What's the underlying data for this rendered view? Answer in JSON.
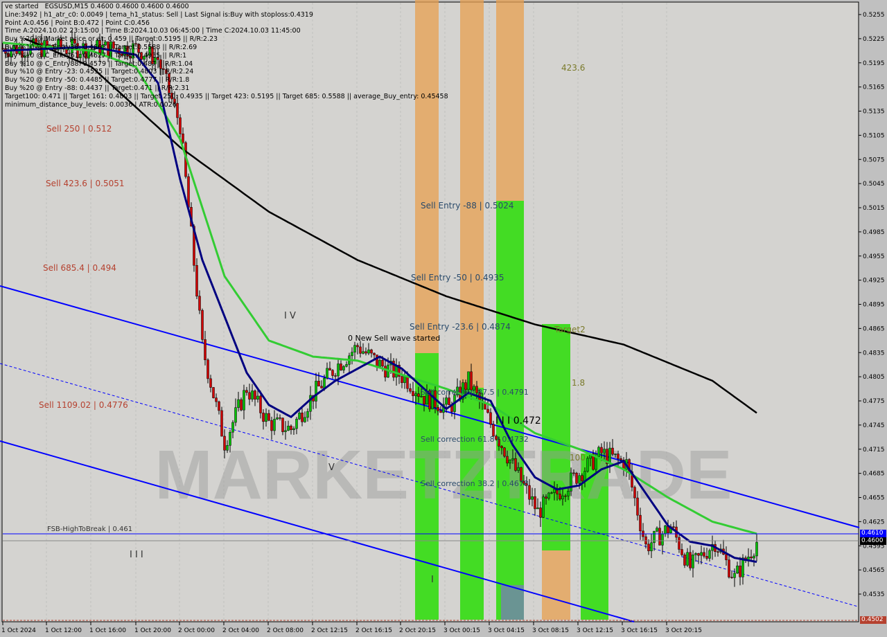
{
  "header": {
    "title_line": "EGSUSD,M15  0.4600 0.4600 0.4600 0.4600",
    "overlay_text": "ve started",
    "lines": [
      "Line:3492 | h1_atr_c0: 0.0049 | tema_h1_status: Sell | Last Signal is:Buy with stoploss:0.4319",
      "Point A:0.456 | Point B:0.472 | Point C:0.456",
      "Time A:2024.10.02 23:15:00 | Time B:2024.10.03 06:45:00 | Time C:2024.10.03 11:45:00",
      "Buy %20 @ Market price or at: 0.459 || Target:0.5195 || R/R:2.23",
      "Buy %10 @ C_Entry38: 0.4663 || Target:0.5588 || R/R:2.69",
      "Buy %10 @ C_Entry61: 0.4627 || Target:0.4935 || R/R:1",
      "Buy %10 @ C_Entry88: 0.4579 || Target:0.487 || R/R:1.04",
      "Buy %10 @ Entry -23: 0.4535 || Target:0.4803 || R/R:2.24",
      "Buy %20 @ Entry -50: 0.4485 || Target:0.4777 || R/R:1.8",
      "Buy %20 @ Entry -88: 0.4437 || Target:0.471 || R/R:2.31",
      "Target100: 0.471 || Target 161: 0.4803 || Target 250: 0.4935 || Target 423: 0.5195 || Target 685: 0.5588 || average_Buy_entry: 0.45458",
      "minimum_distance_buy_levels: 0.0036 | ATR:0.0026"
    ]
  },
  "labels": {
    "sell_250": "Sell 250 | 0.512",
    "sell_423": "Sell 423.6 | 0.5051",
    "sell_685": "Sell 685.4 | 0.494",
    "sell_1109": "Sell 1109.02 | 0.4776",
    "fsb": "FSB-HighToBreak | 0.461",
    "wave_iv": "I V",
    "wave_v": "V",
    "wave_iii": "I I I",
    "wave_i": "I",
    "new_wave": "0 New Sell wave started",
    "entry_88": "Sell Entry -88 | 0.5024",
    "entry_50": "Sell Entry -50 | 0.4935",
    "entry_23": "Sell Entry -23.6 | 0.4874",
    "corr_87": "Sell correction 87.5 | 0.4791",
    "corr_61": "Sell correction 61.8 | 0.4732",
    "corr_38": "Sell correction 38.2 | 0.4678",
    "point_b": "I I I 0.472",
    "t423": "423.6",
    "target2": "Target2",
    "t18": "1.8",
    "t100": "100",
    "watermark": "MARKETZTRADE"
  },
  "price_tags": {
    "blue": "0.4610",
    "black": "0.4600",
    "red": "0.4502"
  },
  "colors": {
    "background": "#d4d3d0",
    "bull": "#00c000",
    "bear": "#d00000",
    "channel": "#0000ff",
    "ma_slow": "#000000",
    "ma_mid": "#33cc33",
    "ma_fast": "#000080",
    "zone_green": "#33dd11",
    "zone_orange": "#e8a050",
    "label_brown": "#b5412f"
  },
  "chart_data": {
    "type": "line",
    "symbol": "EGSUSD",
    "timeframe": "M15",
    "y_ticks": [
      "0.5255",
      "0.5225",
      "0.5195",
      "0.5165",
      "0.5135",
      "0.5105",
      "0.5075",
      "0.5045",
      "0.5015",
      "0.4985",
      "0.4955",
      "0.4925",
      "0.4895",
      "0.4865",
      "0.4835",
      "0.4805",
      "0.4775",
      "0.4745",
      "0.4715",
      "0.4685",
      "0.4655",
      "0.4625",
      "0.4595",
      "0.4565",
      "0.4535"
    ],
    "ylim": [
      0.4502,
      0.5275
    ],
    "x_ticks": [
      "1 Oct 2024",
      "1 Oct 12:00",
      "1 Oct 16:00",
      "1 Oct 20:00",
      "2 Oct 00:00",
      "2 Oct 04:00",
      "2 Oct 08:00",
      "2 Oct 12:15",
      "2 Oct 16:15",
      "2 Oct 20:15",
      "3 Oct 00:15",
      "3 Oct 04:15",
      "3 Oct 08:15",
      "3 Oct 12:15",
      "3 Oct 16:15",
      "3 Oct 20:15"
    ],
    "price": [
      [
        0,
        0.5213
      ],
      [
        12,
        0.5213
      ],
      [
        14,
        0.52
      ],
      [
        16,
        0.5118
      ],
      [
        18,
        0.4843
      ],
      [
        20,
        0.4723
      ],
      [
        22,
        0.4791
      ],
      [
        24,
        0.4748
      ],
      [
        26,
        0.474
      ],
      [
        28,
        0.4783
      ],
      [
        30,
        0.4817
      ],
      [
        32,
        0.4843
      ],
      [
        34,
        0.482
      ],
      [
        36.25,
        0.4804
      ],
      [
        38,
        0.478
      ],
      [
        40.25,
        0.4766
      ],
      [
        42,
        0.48
      ],
      [
        44.25,
        0.474
      ],
      [
        48.25,
        0.4637
      ],
      [
        50,
        0.466
      ],
      [
        52.25,
        0.4688
      ],
      [
        54,
        0.471
      ],
      [
        56.25,
        0.4697
      ],
      [
        58,
        0.4594
      ],
      [
        60.25,
        0.4619
      ],
      [
        62,
        0.4568
      ],
      [
        64.25,
        0.46
      ],
      [
        66,
        0.4555
      ],
      [
        68,
        0.46
      ]
    ],
    "ma_slow": [
      [
        2,
        0.5225
      ],
      [
        8,
        0.519
      ],
      [
        16,
        0.509
      ],
      [
        24,
        0.501
      ],
      [
        32,
        0.495
      ],
      [
        40,
        0.4905
      ],
      [
        48,
        0.487
      ],
      [
        56,
        0.4845
      ],
      [
        64,
        0.48
      ],
      [
        68,
        0.476
      ]
    ],
    "ma_mid": [
      [
        0,
        0.522
      ],
      [
        8,
        0.521
      ],
      [
        12,
        0.519
      ],
      [
        16,
        0.51
      ],
      [
        20,
        0.493
      ],
      [
        24,
        0.485
      ],
      [
        28,
        0.483
      ],
      [
        32,
        0.4825
      ],
      [
        40,
        0.479
      ],
      [
        44,
        0.477
      ],
      [
        48,
        0.4735
      ],
      [
        52,
        0.4715
      ],
      [
        56,
        0.469
      ],
      [
        60,
        0.4655
      ],
      [
        64,
        0.4625
      ],
      [
        68,
        0.461
      ]
    ],
    "ma_fast": [
      [
        0,
        0.521
      ],
      [
        8,
        0.5215
      ],
      [
        12,
        0.5205
      ],
      [
        14,
        0.517
      ],
      [
        16,
        0.505
      ],
      [
        18,
        0.495
      ],
      [
        20,
        0.488
      ],
      [
        22,
        0.481
      ],
      [
        24,
        0.477
      ],
      [
        26,
        0.4755
      ],
      [
        28,
        0.478
      ],
      [
        30,
        0.48
      ],
      [
        32,
        0.4815
      ],
      [
        34,
        0.483
      ],
      [
        36,
        0.4815
      ],
      [
        38,
        0.479
      ],
      [
        40,
        0.4765
      ],
      [
        42,
        0.4785
      ],
      [
        44,
        0.4775
      ],
      [
        46,
        0.472
      ],
      [
        48,
        0.468
      ],
      [
        50,
        0.4665
      ],
      [
        52,
        0.467
      ],
      [
        54,
        0.469
      ],
      [
        56,
        0.47
      ],
      [
        58,
        0.466
      ],
      [
        60,
        0.462
      ],
      [
        62,
        0.46
      ],
      [
        64,
        0.4595
      ],
      [
        66,
        0.458
      ],
      [
        68,
        0.4575
      ]
    ]
  }
}
